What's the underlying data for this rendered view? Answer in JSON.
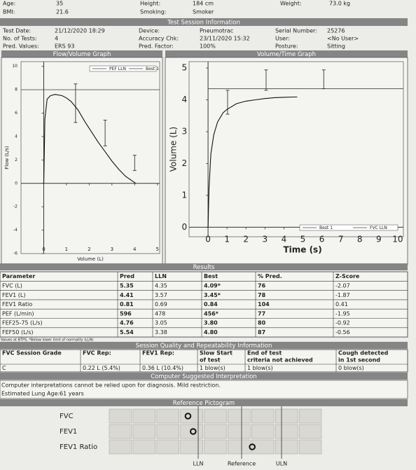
{
  "patient": {
    "rows": [
      [
        {
          "label": "Age:",
          "value": "35"
        },
        {
          "label": "Height:",
          "value": "184 cm"
        },
        {
          "label": "Weight:",
          "value": "73.0 kg"
        }
      ],
      [
        {
          "label": "BMI:",
          "value": "21.6"
        },
        {
          "label": "Smoking:",
          "value": "Smoker"
        }
      ]
    ]
  },
  "session": {
    "title": "Test Session Information",
    "rows": [
      [
        {
          "label": "Test Date:",
          "value": "21/12/2020 18:29"
        },
        {
          "label": "Device:",
          "value": "Pneumotrac"
        },
        {
          "label": "Serial Number:",
          "value": "25276"
        }
      ],
      [
        {
          "label": "No. of Tests:",
          "value": "4"
        },
        {
          "label": "Accuracy Chk:",
          "value": "23/11/2020 15:32"
        },
        {
          "label": "User:",
          "value": "<No User>"
        }
      ],
      [
        {
          "label": "Pred. Values:",
          "value": "ERS 93"
        },
        {
          "label": "Pred. Factor:",
          "value": "100%"
        },
        {
          "label": "Posture:",
          "value": "Sitting"
        }
      ]
    ]
  },
  "flow_volume": {
    "type": "line",
    "title": "Flow/Volume Graph",
    "xlabel": "Volume (L)",
    "ylabel": "Flow (L/s)",
    "xlim": [
      -1,
      5.1
    ],
    "ylim": [
      -6,
      10.4
    ],
    "xticks": [
      0,
      1,
      2,
      3,
      4,
      5
    ],
    "yticks": [
      -6,
      -4,
      -2,
      0,
      2,
      4,
      6,
      8,
      10
    ],
    "reference_line": {
      "name": "PEF LLN",
      "value": 8
    },
    "series": [
      {
        "name": "Best 1",
        "color": "#111",
        "x": [
          0,
          0.05,
          0.15,
          0.3,
          0.5,
          0.8,
          1.0,
          1.2,
          1.5,
          1.8,
          2.1,
          2.4,
          2.7,
          3.0,
          3.3,
          3.6,
          3.9,
          4.05
        ],
        "values": [
          0,
          5.5,
          7.2,
          7.5,
          7.6,
          7.5,
          7.3,
          7.0,
          6.3,
          5.3,
          4.4,
          3.5,
          2.7,
          1.9,
          1.2,
          0.6,
          0.2,
          0
        ]
      }
    ],
    "pred_bars": [
      {
        "x": 1.4,
        "low": 5.2,
        "high": 8.5
      },
      {
        "x": 2.7,
        "low": 3.2,
        "high": 5.4
      },
      {
        "x": 4.0,
        "low": 1.1,
        "high": 2.4
      }
    ]
  },
  "volume_time": {
    "type": "line",
    "title": "Volume/Time Graph",
    "xlabel": "Time (s)",
    "ylabel": "Volume (L)",
    "xlim": [
      -1,
      10.3
    ],
    "ylim": [
      -0.3,
      5.2
    ],
    "xticks": [
      0,
      1,
      2,
      3,
      4,
      5,
      6,
      7,
      8,
      9,
      10
    ],
    "yticks": [
      0,
      1,
      2,
      3,
      4,
      5
    ],
    "reference_line": {
      "name": "FVC LLN",
      "value": 4.35
    },
    "series": [
      {
        "name": "Best 1",
        "color": "#111",
        "x": [
          0,
          0.05,
          0.15,
          0.3,
          0.5,
          0.8,
          1.0,
          1.5,
          2.0,
          2.5,
          3.0,
          3.5,
          4.0,
          4.5,
          4.7
        ],
        "values": [
          0,
          1.2,
          2.3,
          2.9,
          3.3,
          3.6,
          3.7,
          3.88,
          3.96,
          4.0,
          4.04,
          4.07,
          4.08,
          4.09,
          4.09
        ]
      }
    ],
    "pred_bars": [
      {
        "x": 1.03,
        "low": 3.55,
        "high": 4.3
      },
      {
        "x": 3.06,
        "low": 4.3,
        "high": 4.94
      },
      {
        "x": 6.1,
        "low": 4.35,
        "high": 4.94
      }
    ]
  },
  "results": {
    "title": "Results",
    "columns": [
      "Parameter",
      "Pred",
      "LLN",
      "Best",
      "% Pred.",
      "Z-Score"
    ],
    "rows": [
      [
        "FVC (L)",
        "5.35",
        "4.35",
        "4.09*",
        "76",
        -2.07
      ],
      [
        "FEV1 (L)",
        "4.41",
        "3.57",
        "3.45*",
        "78",
        -1.87
      ],
      [
        "FEV1 Ratio",
        "0.81",
        "0.69",
        "0.84",
        "104",
        0.41
      ],
      [
        "PEF (L/min)",
        "596",
        "478",
        "456*",
        "77",
        -1.95
      ],
      [
        "FEF25-75 (L/s)",
        "4.76",
        "3.05",
        "3.80",
        "80",
        -0.92
      ],
      [
        "FEF50 (L/s)",
        "5.54",
        "3.38",
        "4.80",
        "87",
        -0.56
      ]
    ],
    "footnote": "Values at BTPS, *Below lower limit of normality (LLN)"
  },
  "quality": {
    "title": "Session Quality and Repeatability Information",
    "columns": [
      [
        "FVC Session Grade"
      ],
      [
        "FVC Rep:"
      ],
      [
        "FEV1 Rep:"
      ],
      [
        "Slow Start",
        "of test"
      ],
      [
        "End of test",
        "criteria not achieved"
      ],
      [
        "Cough detected",
        "in 1st second"
      ]
    ],
    "values": [
      "C",
      "0.22 L (5.4%)",
      "0.36 L (10.4%)",
      "1 blow(s)",
      "1 blow(s)",
      "0 blow(s)"
    ]
  },
  "interpretation": {
    "title": "Computer Suggested Interpretation",
    "text": "Computer interpretations cannot be relied upon for diagnosis. Mild restriction.",
    "lung_age_label": "Estimated Lung Age:",
    "lung_age": "61 years"
  },
  "pictogram": {
    "title": "Reference Pictogram",
    "rows": [
      "FVC",
      "FEV1",
      "FEV1 Ratio"
    ],
    "labels": [
      "LLN",
      "Reference",
      "ULN"
    ]
  }
}
